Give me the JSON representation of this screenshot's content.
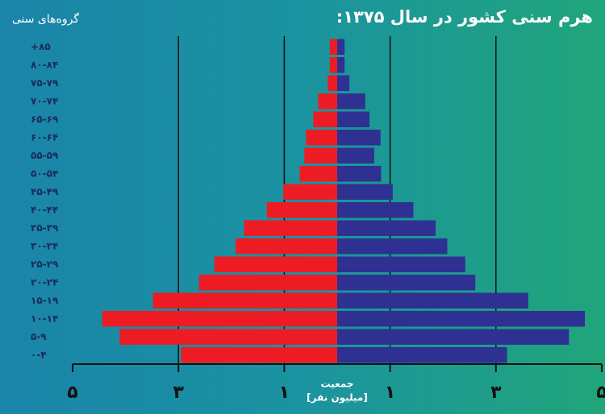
{
  "chart_data": {
    "type": "pyramid",
    "title": "هرم سنی کشور در سال ۱۳۷۵:",
    "y_label": "گروه‌های سنی",
    "x_label": "جمعیت",
    "x_unit": "[میلیون نفر]",
    "categories": [
      "+۸۵",
      "۸۰-۸۴",
      "۷۵-۷۹",
      "۷۰-۷۴",
      "۶۵-۶۹",
      "۶۰-۶۴",
      "۵۵-۵۹",
      "۵۰-۵۴",
      "۴۵-۴۹",
      "۴۰-۴۴",
      "۳۵-۳۹",
      "۳۰-۳۴",
      "۲۵-۲۹",
      "۲۰-۲۴",
      "۱۵-۱۹",
      "۱۰-۱۴",
      "۵-۹",
      "۰-۴"
    ],
    "series": [
      {
        "color": "#ed1c24",
        "values": [
          0.14,
          0.14,
          0.18,
          0.36,
          0.45,
          0.59,
          0.62,
          0.71,
          1.02,
          1.33,
          1.76,
          1.92,
          2.32,
          2.61,
          3.48,
          4.44,
          4.11,
          2.95
        ]
      },
      {
        "color": "#2e3192",
        "values": [
          0.14,
          0.14,
          0.23,
          0.53,
          0.61,
          0.82,
          0.7,
          0.83,
          1.05,
          1.44,
          1.86,
          2.08,
          2.42,
          2.61,
          3.61,
          4.68,
          4.38,
          3.21
        ]
      }
    ],
    "xlim": [
      -5,
      5
    ],
    "xticks": [
      {
        "value": -5,
        "label": "۵"
      },
      {
        "value": -3,
        "label": "۳"
      },
      {
        "value": -1,
        "label": "۱"
      },
      {
        "value": 1,
        "label": "۱"
      },
      {
        "value": 3,
        "label": "۳"
      },
      {
        "value": 5,
        "label": "۵"
      }
    ],
    "grid": true
  }
}
